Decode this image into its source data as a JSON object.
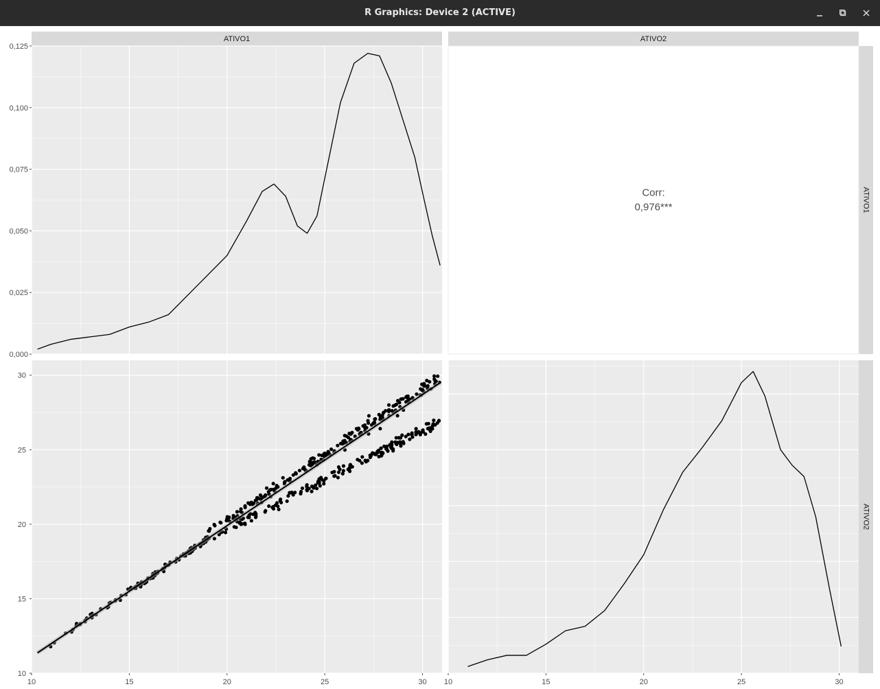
{
  "window": {
    "title": "R Graphics: Device 2 (ACTIVE)",
    "controls": [
      "minimize-icon",
      "maximize-icon",
      "close-icon"
    ]
  },
  "chart_data": {
    "type": "pairs-matrix",
    "variables": [
      "ATIVO1",
      "ATIVO2"
    ],
    "colors": {
      "panel_bg": "#ebebeb",
      "strip_bg": "#d9d9d9",
      "grid": "#ffffff",
      "ink": "#000000",
      "muted": "#4d4d4d"
    },
    "x_ticks": [
      "10",
      "15",
      "20",
      "25",
      "30"
    ],
    "panels": [
      {
        "id": "density-ativo1",
        "type": "line",
        "variable": "ATIVO1",
        "xlim": [
          10,
          31
        ],
        "ylim": [
          0,
          0.125
        ],
        "y_ticks": [
          "0,000",
          "0,025",
          "0,050",
          "0,075",
          "0,100",
          "0,125"
        ],
        "x": [
          10.3,
          11.0,
          12.0,
          13.0,
          14.0,
          15.0,
          16.0,
          17.0,
          18.0,
          19.0,
          20.0,
          21.0,
          21.8,
          22.4,
          23.0,
          23.6,
          24.1,
          24.6,
          25.2,
          25.8,
          26.5,
          27.2,
          27.8,
          28.4,
          29.0,
          29.6,
          30.1,
          30.5,
          30.9
        ],
        "y": [
          0.002,
          0.004,
          0.006,
          0.007,
          0.008,
          0.011,
          0.013,
          0.016,
          0.024,
          0.032,
          0.04,
          0.054,
          0.066,
          0.069,
          0.064,
          0.052,
          0.049,
          0.056,
          0.079,
          0.102,
          0.118,
          0.122,
          0.121,
          0.11,
          0.095,
          0.08,
          0.062,
          0.048,
          0.036
        ]
      },
      {
        "id": "corr-ativo1-ativo2",
        "type": "text",
        "label": "Corr:",
        "value": "0,976***"
      },
      {
        "id": "scatter-ativo2-vs-ativo1",
        "type": "scatter",
        "xlim": [
          10,
          31
        ],
        "ylim": [
          10,
          31
        ],
        "y_ticks": [
          "10",
          "15",
          "20",
          "25",
          "30"
        ],
        "fit": {
          "slope": 0.88,
          "intercept": 2.3
        }
      },
      {
        "id": "density-ativo2",
        "type": "line",
        "variable": "ATIVO2",
        "xlim": [
          10,
          31
        ],
        "x": [
          11.0,
          12.0,
          13.0,
          14.0,
          15.0,
          16.0,
          17.0,
          18.0,
          19.0,
          20.0,
          21.0,
          22.0,
          23.0,
          24.0,
          25.0,
          25.6,
          26.2,
          27.0,
          27.6,
          28.2,
          28.8,
          29.5,
          30.1
        ],
        "y": [
          0.003,
          0.006,
          0.008,
          0.008,
          0.013,
          0.019,
          0.021,
          0.028,
          0.04,
          0.053,
          0.073,
          0.09,
          0.101,
          0.113,
          0.13,
          0.135,
          0.124,
          0.1,
          0.093,
          0.088,
          0.07,
          0.038,
          0.012
        ]
      }
    ]
  }
}
